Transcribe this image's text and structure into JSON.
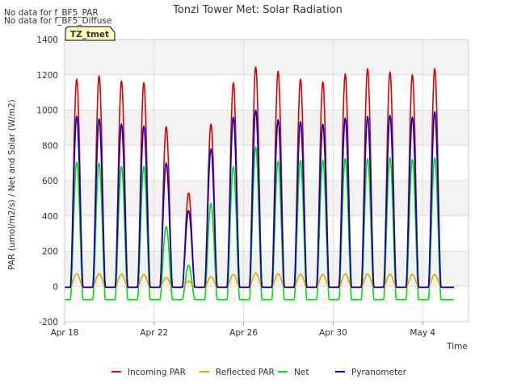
{
  "notes": [
    "No data for f_BF5_PAR",
    "No data for f_BF5_Diffuse"
  ],
  "badge": "TZ_tmet",
  "chart_data": {
    "type": "line",
    "title": "Tonzi Tower Met: Solar Radiation",
    "xlabel": "Time",
    "ylabel": "PAR (umol/m2/s) / Net and Solar (W/m2)",
    "x_range": [
      "Apr 18",
      "May 6"
    ],
    "x_ticks": [
      "Apr 18",
      "Apr 22",
      "Apr 26",
      "Apr 30",
      "May 4"
    ],
    "ylim": [
      -200,
      1400
    ],
    "y_ticks": [
      -200,
      0,
      200,
      400,
      600,
      800,
      1000,
      1200,
      1400
    ],
    "grid": true,
    "legend_position": "bottom",
    "days": [
      "Apr 18",
      "Apr 19",
      "Apr 20",
      "Apr 21",
      "Apr 22",
      "Apr 23",
      "Apr 24",
      "Apr 25",
      "Apr 26",
      "Apr 27",
      "Apr 28",
      "Apr 29",
      "Apr 30",
      "May 1",
      "May 2",
      "May 3",
      "May 4",
      "May 5"
    ],
    "series": [
      {
        "name": "Incoming PAR",
        "color": "#dd0000",
        "daily_peak": [
          1175,
          1195,
          1165,
          1155,
          905,
          530,
          920,
          1155,
          1245,
          1220,
          1175,
          1160,
          1205,
          1235,
          1215,
          1200,
          1235,
          null
        ],
        "night": -5
      },
      {
        "name": "Reflected PAR",
        "color": "#f0a000",
        "daily_peak": [
          72,
          72,
          70,
          68,
          50,
          30,
          55,
          68,
          75,
          72,
          70,
          68,
          70,
          70,
          70,
          68,
          68,
          null
        ],
        "night": -5
      },
      {
        "name": "Net",
        "color": "#00dd00",
        "daily_peak": [
          705,
          700,
          680,
          680,
          340,
          120,
          470,
          680,
          790,
          710,
          715,
          715,
          725,
          725,
          730,
          720,
          730,
          null
        ],
        "night": -75
      },
      {
        "name": "Pyranometer",
        "color": "#0000cc",
        "daily_peak": [
          965,
          950,
          920,
          910,
          700,
          430,
          780,
          960,
          1000,
          945,
          935,
          920,
          955,
          965,
          970,
          960,
          990,
          null
        ],
        "night": -5
      }
    ]
  }
}
